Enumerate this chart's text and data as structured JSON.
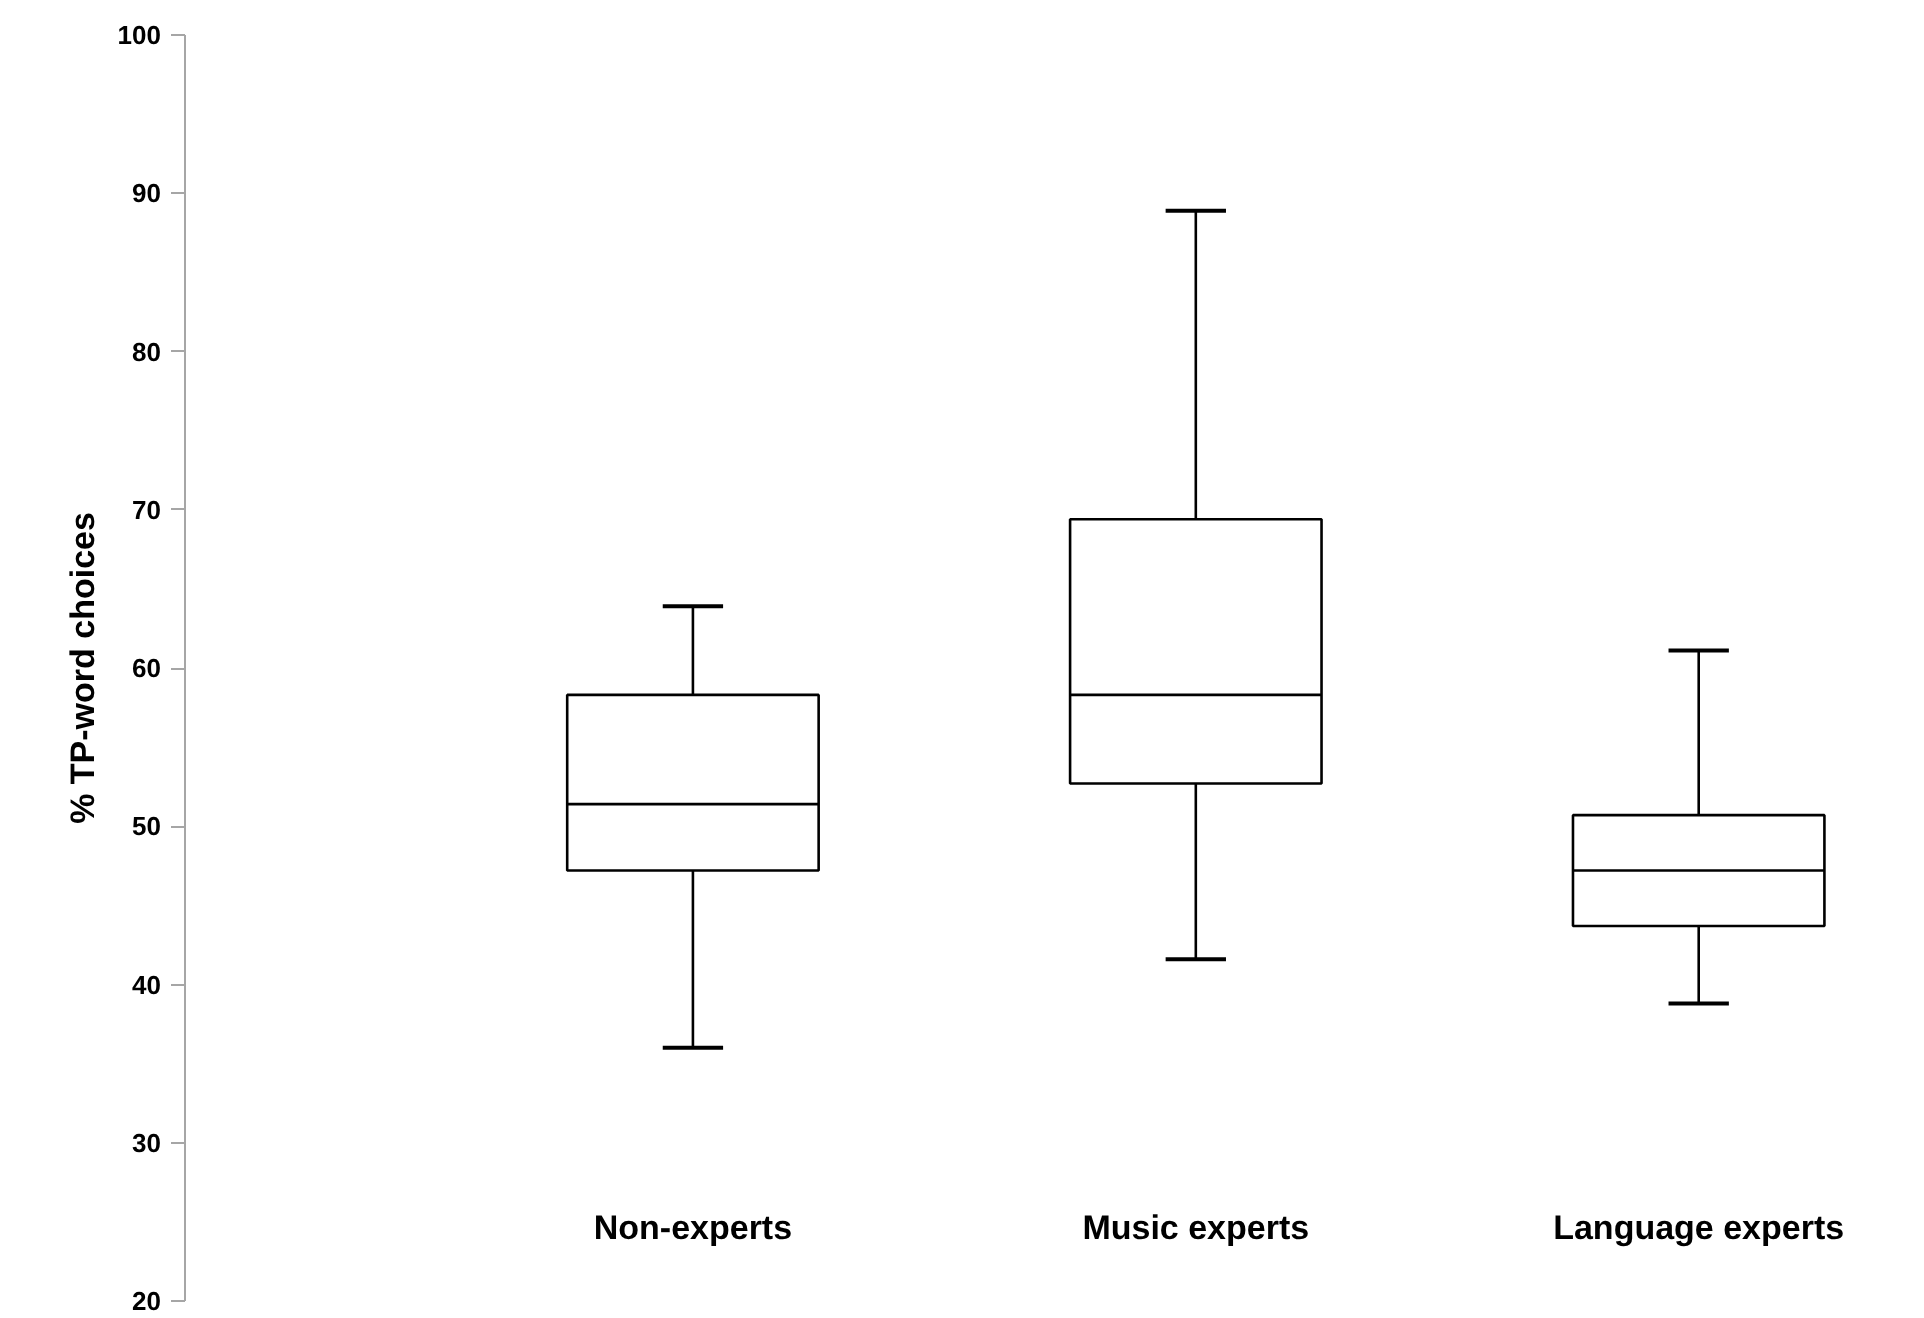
{
  "chart_data": {
    "type": "box",
    "ylabel": "% TP-word choices",
    "categories": [
      "Non-experts",
      "Music experts",
      "Language experts"
    ],
    "boxes": [
      {
        "low": 36.0,
        "q1": 47.2,
        "median": 51.4,
        "q3": 58.3,
        "high": 63.9
      },
      {
        "low": 41.6,
        "q1": 52.7,
        "median": 58.3,
        "q3": 69.4,
        "high": 88.9
      },
      {
        "low": 38.8,
        "q1": 43.7,
        "median": 47.2,
        "q3": 50.7,
        "high": 61.1
      }
    ],
    "color": "#000000",
    "ylim": [
      20,
      100
    ],
    "yticks": [
      20,
      30,
      40,
      50,
      60,
      70,
      80,
      90,
      100
    ],
    "grid": false
  }
}
